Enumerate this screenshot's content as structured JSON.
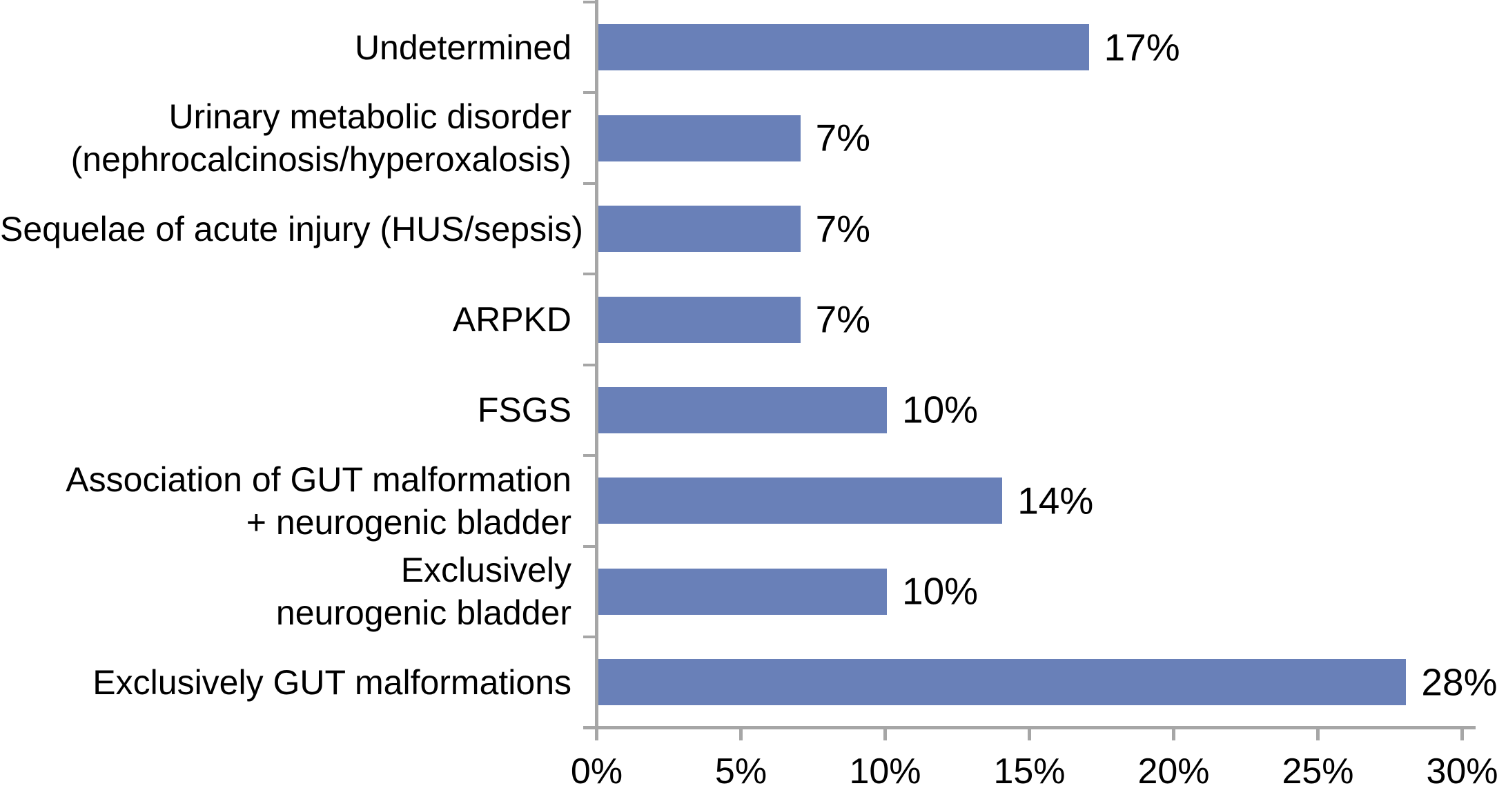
{
  "chart_data": {
    "type": "bar",
    "orientation": "horizontal",
    "title": "",
    "xlabel": "",
    "ylabel": "",
    "grid": false,
    "legend": false,
    "data_labels": true,
    "categories": [
      "Undetermined",
      "Urinary metabolic disorder (nephrocalcinosis/hyperoxalosis)",
      "Sequelae of acute injury (HUS/sepsis)",
      "ARPKD",
      "FSGS",
      "Association of GUT malformation + neurogenic bladder",
      "Exclusively neurogenic bladder",
      "Exclusively GUT malformations"
    ],
    "category_lines": [
      [
        "Undetermined"
      ],
      [
        "Urinary metabolic disorder",
        "(nephrocalcinosis/hyperoxalosis)"
      ],
      [
        "Sequelae of acute injury (HUS/sepsis)"
      ],
      [
        "ARPKD"
      ],
      [
        "FSGS"
      ],
      [
        "Association of GUT malformation",
        "+ neurogenic bladder"
      ],
      [
        "Exclusively",
        "neurogenic bladder"
      ],
      [
        "Exclusively GUT malformations"
      ]
    ],
    "values": [
      17,
      7,
      7,
      7,
      10,
      14,
      10,
      28
    ],
    "value_labels": [
      "17%",
      "7%",
      "7%",
      "7%",
      "10%",
      "14%",
      "10%",
      "28%"
    ],
    "xlim": [
      0,
      30
    ],
    "x_ticks": [
      0,
      5,
      10,
      15,
      20,
      25,
      30
    ],
    "x_tick_labels": [
      "0%",
      "5%",
      "10%",
      "15%",
      "20%",
      "25%",
      "30%"
    ],
    "bar_color": "#6980B8",
    "axis_color": "#A6A6A6",
    "text_color": "#000000",
    "background_color": "#FFFFFF"
  }
}
